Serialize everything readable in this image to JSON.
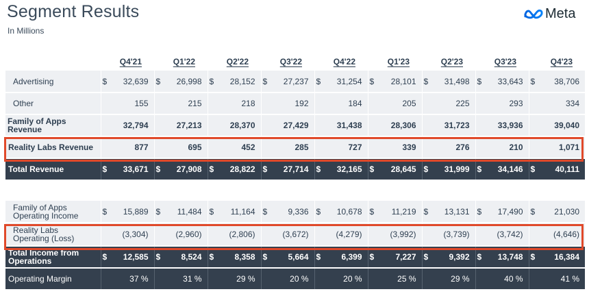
{
  "header": {
    "title": "Segment Results",
    "subtitle": "In Millions",
    "logo_text": "Meta"
  },
  "quarters": [
    "Q4'21",
    "Q1'22",
    "Q2'22",
    "Q3'22",
    "Q4'22",
    "Q1'23",
    "Q2'23",
    "Q3'23",
    "Q4'23"
  ],
  "rows": [
    {
      "label": "Advertising",
      "values": [
        "32,639",
        "26,998",
        "28,152",
        "27,237",
        "31,254",
        "28,101",
        "31,498",
        "33,643",
        "38,706"
      ]
    },
    {
      "label": "Other",
      "values": [
        "155",
        "215",
        "218",
        "192",
        "184",
        "205",
        "225",
        "293",
        "334"
      ]
    },
    {
      "label": "Family of Apps Revenue",
      "values": [
        "32,794",
        "27,213",
        "28,370",
        "27,429",
        "31,438",
        "28,306",
        "31,723",
        "33,936",
        "39,040"
      ]
    },
    {
      "label": "Reality Labs Revenue",
      "values": [
        "877",
        "695",
        "452",
        "285",
        "727",
        "339",
        "276",
        "210",
        "1,071"
      ]
    },
    {
      "label": "Total Revenue",
      "values": [
        "33,671",
        "27,908",
        "28,822",
        "27,714",
        "32,165",
        "28,645",
        "31,999",
        "34,146",
        "40,111"
      ]
    },
    {
      "label": "Family of Apps Operating Income",
      "values": [
        "15,889",
        "11,484",
        "11,164",
        "9,336",
        "10,678",
        "11,219",
        "13,131",
        "17,490",
        "21,030"
      ]
    },
    {
      "label": "Reality Labs Operating (Loss)",
      "values": [
        "(3,304)",
        "(2,960)",
        "(2,806)",
        "(3,672)",
        "(4,279)",
        "(3,992)",
        "(3,739)",
        "(3,742)",
        "(4,646)"
      ]
    },
    {
      "label": "Total Income from Operations",
      "values": [
        "12,585",
        "8,524",
        "8,358",
        "5,664",
        "6,399",
        "7,227",
        "9,392",
        "13,748",
        "16,384"
      ]
    },
    {
      "label": "Operating Margin",
      "values": [
        "37 %",
        "31 %",
        "29 %",
        "20 %",
        "20 %",
        "25 %",
        "29 %",
        "40 %",
        "41 %"
      ]
    }
  ],
  "currency_symbol": "$",
  "colors": {
    "highlight": "#e0492a",
    "dark_row": "#34404e",
    "light_row": "#eef0f3",
    "text": "#2d3e50",
    "logo_gradient_start": "#0064e0",
    "logo_gradient_end": "#0082fb"
  }
}
